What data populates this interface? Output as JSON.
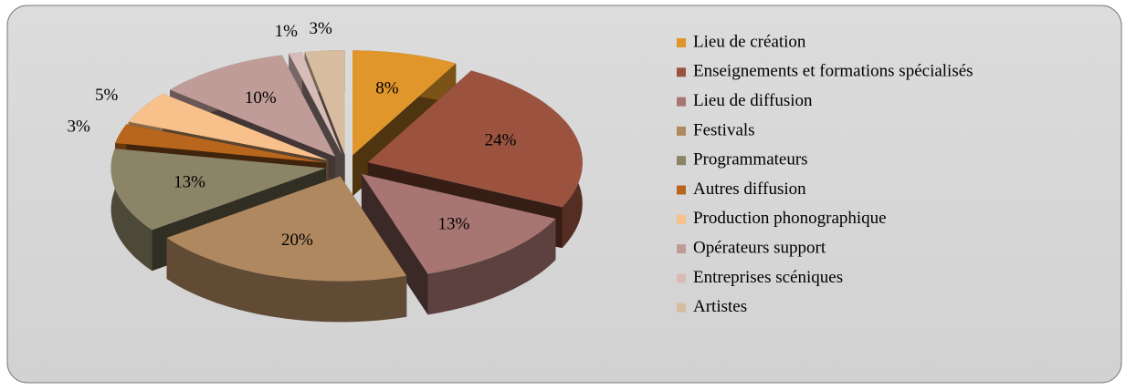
{
  "chart_data": {
    "type": "pie",
    "categories": [
      "Lieu de création",
      "Enseignements et formations spécialisés",
      "Lieu de diffusion",
      "Festivals",
      "Programmateurs",
      "Autres diffusion",
      "Production phonographique",
      "Opérateurs support",
      "Entreprises scéniques",
      "Artistes"
    ],
    "values": [
      8,
      24,
      13,
      20,
      13,
      3,
      5,
      10,
      1,
      3
    ],
    "value_labels": [
      "8%",
      "24%",
      "13%",
      "20%",
      "13%",
      "3%",
      "5%",
      "10%",
      "1%",
      "3%"
    ],
    "colors": [
      "#e0962a",
      "#9b5340",
      "#a87672",
      "#b08860",
      "#8c8466",
      "#b8661e",
      "#f8c08a",
      "#c09c98",
      "#d8bcb8",
      "#d8bca0"
    ],
    "legend": "right"
  }
}
